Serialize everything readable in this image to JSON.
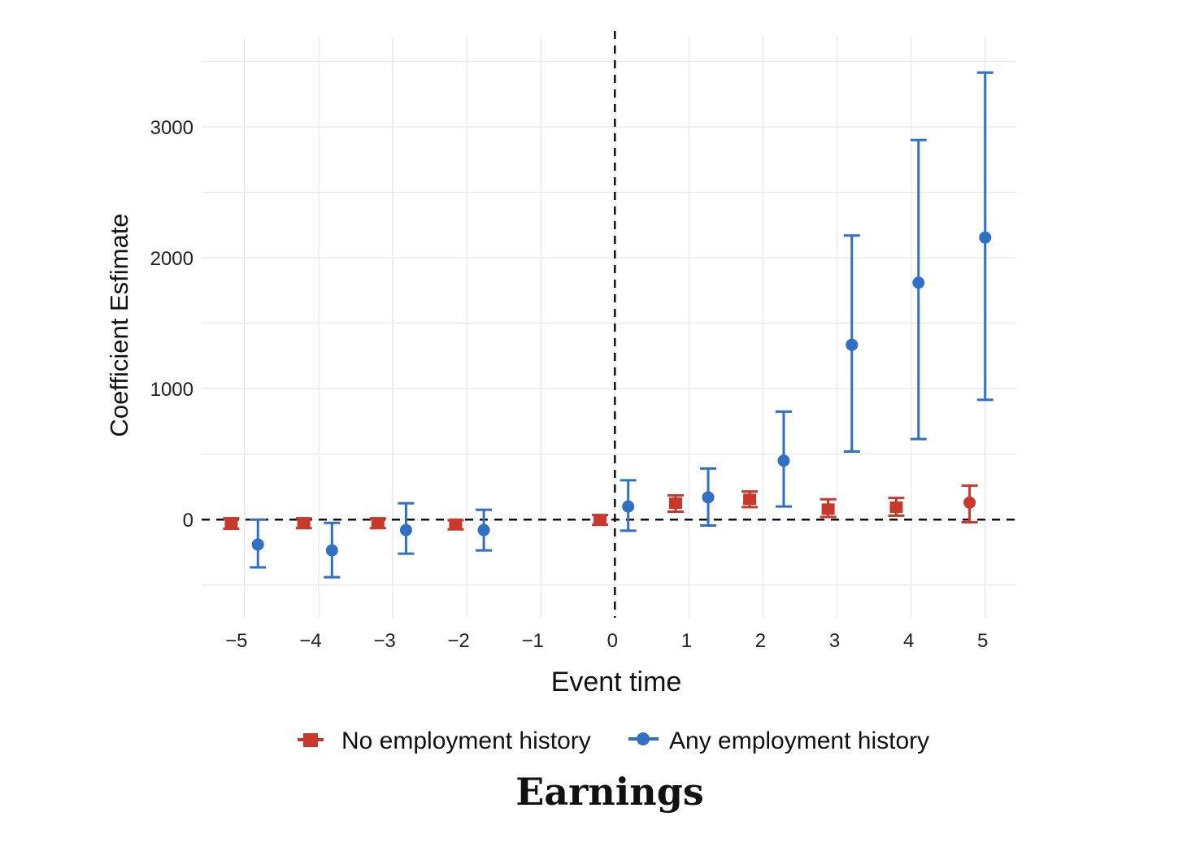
{
  "chart_data": {
    "type": "scatter",
    "title": "",
    "caption": "Earnings",
    "xlabel": "Event time",
    "ylabel": "Coefficient Esfimate",
    "xlim": [
      -5.58,
      5.42
    ],
    "ylim": [
      -750,
      3690
    ],
    "xticks": [
      -5,
      -4,
      -3,
      -2,
      -1,
      0,
      1,
      2,
      3,
      4,
      5
    ],
    "xtick_labels": [
      "−5",
      "−4",
      "−3",
      "−2",
      "−1",
      "0",
      "1",
      "2",
      "3",
      "4",
      "5"
    ],
    "yticks": [
      0,
      1000,
      2000,
      3000
    ],
    "ytick_labels": [
      "0",
      "1000",
      "2000",
      "3000"
    ],
    "minor_ygrid": [
      -500,
      500,
      1500,
      2500,
      3500
    ],
    "grid": true,
    "reference_lines": {
      "horizontal": 0,
      "vertical": 0,
      "style": "dashed"
    },
    "legend_position": "bottom",
    "series": [
      {
        "name": "No employment history",
        "color": "#c8382b",
        "marker": "square",
        "points": [
          {
            "event_time": -5,
            "x": -5.18,
            "y": -25,
            "lo": -70,
            "hi": 10
          },
          {
            "event_time": -4,
            "x": -4.2,
            "y": -25,
            "lo": -65,
            "hi": 10
          },
          {
            "event_time": -3,
            "x": -3.2,
            "y": -25,
            "lo": -65,
            "hi": 10
          },
          {
            "event_time": -2,
            "x": -2.15,
            "y": -35,
            "lo": -75,
            "hi": -5
          },
          {
            "event_time": 0,
            "x": -0.2,
            "y": 0,
            "lo": -40,
            "hi": 35
          },
          {
            "event_time": 1,
            "x": 0.82,
            "y": 125,
            "lo": 60,
            "hi": 185
          },
          {
            "event_time": 2,
            "x": 1.82,
            "y": 155,
            "lo": 95,
            "hi": 215
          },
          {
            "event_time": 3,
            "x": 2.88,
            "y": 80,
            "lo": 20,
            "hi": 155
          },
          {
            "event_time": 4,
            "x": 3.8,
            "y": 95,
            "lo": 30,
            "hi": 165
          },
          {
            "event_time": 5,
            "x": 4.79,
            "y": 130,
            "lo": -20,
            "hi": 260
          }
        ]
      },
      {
        "name": "Any employment history",
        "color": "#2f6fc4",
        "marker": "circle",
        "points": [
          {
            "event_time": -5,
            "x": -4.82,
            "y": -190,
            "lo": -365,
            "hi": 0
          },
          {
            "event_time": -4,
            "x": -3.82,
            "y": -235,
            "lo": -440,
            "hi": -25
          },
          {
            "event_time": -3,
            "x": -2.82,
            "y": -80,
            "lo": -260,
            "hi": 125
          },
          {
            "event_time": -2,
            "x": -1.77,
            "y": -80,
            "lo": -235,
            "hi": 75
          },
          {
            "event_time": 0,
            "x": 0.18,
            "y": 100,
            "lo": -85,
            "hi": 300
          },
          {
            "event_time": 1,
            "x": 1.26,
            "y": 170,
            "lo": -45,
            "hi": 390
          },
          {
            "event_time": 2,
            "x": 2.28,
            "y": 450,
            "lo": 100,
            "hi": 825
          },
          {
            "event_time": 3,
            "x": 3.2,
            "y": 1335,
            "lo": 520,
            "hi": 2170
          },
          {
            "event_time": 4,
            "x": 4.1,
            "y": 1810,
            "lo": 615,
            "hi": 2900
          },
          {
            "event_time": 5,
            "x": 5.0,
            "y": 2155,
            "lo": 915,
            "hi": 3415
          }
        ]
      }
    ]
  }
}
